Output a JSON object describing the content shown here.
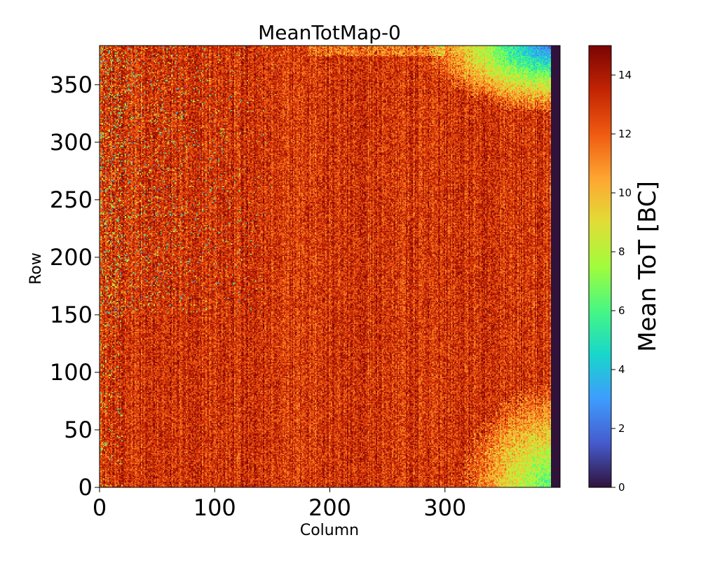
{
  "chart_data": {
    "type": "heatmap",
    "title": "MeanTotMap-0",
    "xlabel": "Column",
    "ylabel": "Row",
    "xlim": [
      0,
      400
    ],
    "ylim": [
      0,
      384
    ],
    "x_ticks": [
      "0",
      "100",
      "200",
      "300"
    ],
    "y_ticks": [
      "0",
      "50",
      "100",
      "150",
      "200",
      "250",
      "300",
      "350"
    ],
    "colorbar": {
      "label": "Mean ToT [BC]",
      "range": [
        0,
        15
      ],
      "ticks": [
        "0",
        "2",
        "4",
        "6",
        "8",
        "10",
        "12",
        "14"
      ],
      "colormap": "turbo"
    },
    "description_values": {
      "typical_value": 13,
      "dead_columns_start": 392,
      "dead_columns_value": 0,
      "top_right_corner_value": 2,
      "bottom_right_corner_value": 6
    }
  }
}
